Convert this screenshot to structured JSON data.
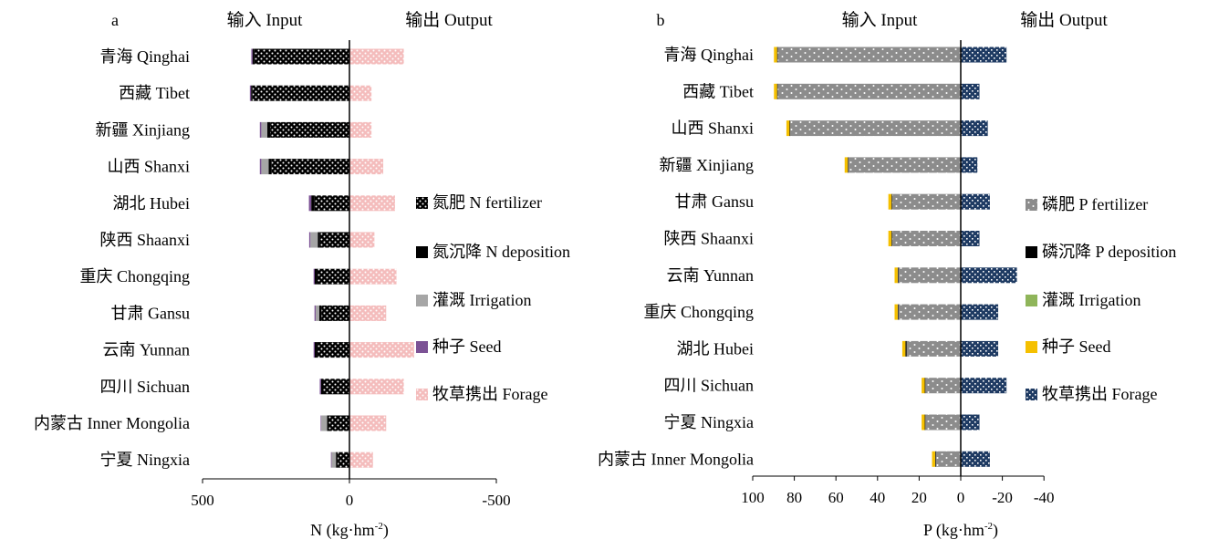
{
  "chart_data": [
    {
      "panel": "a",
      "type": "bar",
      "stacked": true,
      "orientation": "horizontal",
      "header_input": "输入 Input",
      "header_output": "输出 Output",
      "xlabel": "N (kg·hm",
      "xlabel_sup": "-2",
      "xlabel_tail": ")",
      "xlim": [
        500,
        -500
      ],
      "ticks": [
        500,
        0,
        -500
      ],
      "tick_labels": [
        "500",
        "0",
        "-500"
      ],
      "categories": [
        "青海 Qinghai",
        "西藏 Tibet",
        "新疆 Xinjiang",
        "山西 Shanxi",
        "湖北 Hubei",
        "陕西 Shaanxi",
        "重庆 Chongqing",
        "甘肃 Gansu",
        "云南 Yunnan",
        "四川 Sichuan",
        "内蒙古 Inner Mongolia",
        "宁夏 Ningxia"
      ],
      "series": [
        {
          "name": "氮肥 N fertilizer",
          "color": "#000000",
          "pattern": "dots-black",
          "values": [
            325,
            330,
            270,
            265,
            120,
            100,
            110,
            95,
            110,
            90,
            70,
            40
          ]
        },
        {
          "name": "氮沉降 N deposition",
          "color": "#000000",
          "pattern": "solid",
          "values": [
            5,
            5,
            10,
            10,
            10,
            8,
            8,
            8,
            8,
            7,
            6,
            6
          ]
        },
        {
          "name": "灌溉 Irrigation",
          "color": "#a6a6a6",
          "pattern": "solid",
          "values": [
            0,
            0,
            20,
            25,
            0,
            25,
            0,
            12,
            0,
            0,
            20,
            15
          ]
        },
        {
          "name": "种子 Seed",
          "color": "#7c5295",
          "pattern": "solid",
          "values": [
            4,
            4,
            5,
            5,
            8,
            4,
            4,
            4,
            4,
            4,
            2,
            2
          ]
        },
        {
          "name": "牧草携出 Forage",
          "color": "#f2b8b8",
          "pattern": "dots-pink",
          "values": [
            -185,
            -75,
            -75,
            -115,
            -155,
            -85,
            -160,
            -125,
            -220,
            -185,
            -125,
            -80
          ]
        }
      ]
    },
    {
      "panel": "b",
      "type": "bar",
      "stacked": true,
      "orientation": "horizontal",
      "header_input": "输入 Input",
      "header_output": "输出 Output",
      "xlabel": "P (kg·hm",
      "xlabel_sup": "-2",
      "xlabel_tail": ")",
      "xlim": [
        100,
        -40
      ],
      "ticks": [
        100,
        80,
        60,
        40,
        20,
        0,
        -20,
        -40
      ],
      "tick_labels": [
        "100",
        "80",
        "60",
        "40",
        "20",
        "0",
        "-20",
        "-40"
      ],
      "categories": [
        "青海 Qinghai",
        "西藏 Tibet",
        "山西 Shanxi",
        "新疆 Xinjiang",
        "甘肃 Gansu",
        "陕西 Shaanxi",
        "云南 Yunnan",
        "重庆 Chongqing",
        "湖北 Hubei",
        "四川 Sichuan",
        "宁夏 Ningxia",
        "内蒙古 Inner Mongolia"
      ],
      "series": [
        {
          "name": "磷肥 P fertilizer",
          "color": "#8c8c8c",
          "pattern": "dots-grey",
          "values": [
            88,
            88,
            82,
            54,
            33,
            33,
            30,
            30,
            26,
            17,
            17,
            12
          ]
        },
        {
          "name": "磷沉降 P deposition",
          "color": "#000000",
          "pattern": "solid",
          "values": [
            0.3,
            0.3,
            0.3,
            0.3,
            0.3,
            0.3,
            0.3,
            0.3,
            0.6,
            0.3,
            0.3,
            0.3
          ]
        },
        {
          "name": "灌溉 Irrigation",
          "color": "#8fb55a",
          "pattern": "solid",
          "values": [
            0,
            0,
            0,
            0,
            0,
            0,
            0,
            0,
            0,
            0,
            0,
            0
          ]
        },
        {
          "name": "种子 Seed",
          "color": "#f5c000",
          "pattern": "solid",
          "values": [
            1.5,
            1.5,
            1.5,
            1.5,
            1.5,
            1.5,
            1.5,
            1.5,
            1.5,
            1.5,
            1.5,
            1.5
          ]
        },
        {
          "name": "牧草携出 Forage",
          "color": "#1f3b63",
          "pattern": "checks-navy",
          "values": [
            -22,
            -9,
            -13,
            -8,
            -14,
            -9,
            -27,
            -18,
            -18,
            -22,
            -9,
            -14
          ]
        }
      ]
    }
  ]
}
